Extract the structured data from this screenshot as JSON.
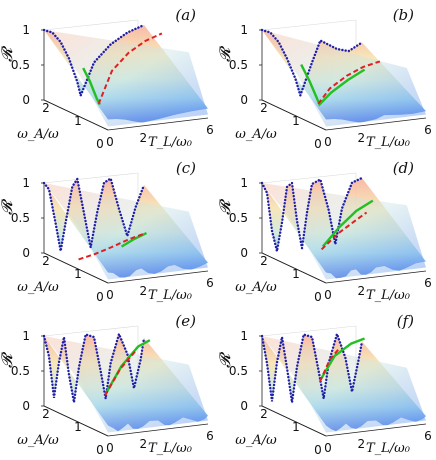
{
  "chart_data": [
    {
      "type": "surface",
      "panel_label": "(a)",
      "zlabel": "𝓡",
      "xlabel": "T_L/ω₀",
      "ylabel": "ω_A/ω",
      "x_ticks": [
        "0",
        "2",
        "6"
      ],
      "y_ticks": [
        "0",
        "1",
        "2"
      ],
      "z_ticks": [
        "0",
        "0.5",
        "1"
      ],
      "zlim": [
        0,
        1
      ],
      "blue_dotted_points": [
        [
          0,
          1.0
        ],
        [
          0.5,
          0.95
        ],
        [
          1.0,
          0.8
        ],
        [
          1.5,
          0.55
        ],
        [
          2.0,
          0.2
        ],
        [
          2.2,
          0.0
        ],
        [
          3.0,
          0.45
        ],
        [
          4.0,
          0.68
        ],
        [
          5.0,
          0.82
        ],
        [
          6.0,
          0.9
        ]
      ],
      "red_dashed_points": [
        [
          2.2,
          0.0
        ],
        [
          3.0,
          0.45
        ],
        [
          4.0,
          0.68
        ],
        [
          5.0,
          0.82
        ],
        [
          6.0,
          0.9
        ]
      ],
      "green_points": [
        [
          1.2,
          0.55
        ],
        [
          1.6,
          0.35
        ],
        [
          2.0,
          0.1
        ],
        [
          2.2,
          0.0
        ]
      ],
      "colors": {
        "blue": "#1f1fa8",
        "red": "#e02020",
        "green": "#22c022"
      }
    },
    {
      "type": "surface",
      "panel_label": "(b)",
      "zlabel": "𝓡",
      "xlabel": "T_L/ω₀",
      "ylabel": "ω_A/ω",
      "x_ticks": [
        "0",
        "2",
        "6"
      ],
      "y_ticks": [
        "0",
        "1",
        "2"
      ],
      "z_ticks": [
        "0",
        "0.5",
        "1"
      ],
      "zlim": [
        0,
        1
      ],
      "blue_dotted_points": [
        [
          0,
          1.0
        ],
        [
          0.5,
          0.95
        ],
        [
          1.0,
          0.8
        ],
        [
          1.5,
          0.55
        ],
        [
          2.0,
          0.25
        ],
        [
          2.3,
          0.0
        ],
        [
          3.0,
          0.45
        ],
        [
          3.5,
          0.75
        ],
        [
          4.5,
          0.6
        ],
        [
          5.2,
          0.55
        ],
        [
          6.0,
          0.65
        ]
      ],
      "red_dashed_points": [
        [
          2.3,
          0.0
        ],
        [
          3.0,
          0.2
        ],
        [
          4.0,
          0.35
        ],
        [
          5.0,
          0.45
        ],
        [
          6.0,
          0.5
        ]
      ],
      "green_points": [
        [
          1.2,
          0.6
        ],
        [
          1.7,
          0.35
        ],
        [
          2.3,
          0.0
        ],
        [
          3.0,
          0.15
        ],
        [
          4.0,
          0.3
        ],
        [
          5.0,
          0.42
        ]
      ],
      "colors": {
        "blue": "#1f1fa8",
        "red": "#e02020",
        "green": "#22c022"
      }
    },
    {
      "type": "surface",
      "panel_label": "(c)",
      "zlabel": "𝓡",
      "xlabel": "T_L/ω₀",
      "ylabel": "ω_A/ω",
      "x_ticks": [
        "0",
        "2",
        "6"
      ],
      "y_ticks": [
        "0",
        "1",
        "2"
      ],
      "z_ticks": [
        "0",
        "0.5",
        "1"
      ],
      "zlim": [
        0,
        1
      ],
      "blue_dotted_points": [
        [
          0,
          1.0
        ],
        [
          0.3,
          0.9
        ],
        [
          0.7,
          0.4
        ],
        [
          1.0,
          0.0
        ],
        [
          1.3,
          0.4
        ],
        [
          1.7,
          0.9
        ],
        [
          2.0,
          1.0
        ],
        [
          2.4,
          0.5
        ],
        [
          2.8,
          0.0
        ],
        [
          3.2,
          0.5
        ],
        [
          3.6,
          0.9
        ],
        [
          4.0,
          0.95
        ],
        [
          4.5,
          0.5
        ],
        [
          5.0,
          0.1
        ],
        [
          5.5,
          0.5
        ],
        [
          6.0,
          0.8
        ]
      ],
      "red_dashed_points": [
        [
          1.0,
          0.0
        ],
        [
          2.0,
          0.05
        ],
        [
          3.0,
          0.12
        ],
        [
          4.0,
          0.2
        ],
        [
          5.0,
          0.26
        ]
      ],
      "green_points": [
        [
          3.5,
          0.12
        ],
        [
          4.2,
          0.2
        ],
        [
          5.0,
          0.27
        ]
      ],
      "colors": {
        "blue": "#1f1fa8",
        "red": "#e02020",
        "green": "#22c022"
      }
    },
    {
      "type": "surface",
      "panel_label": "(d)",
      "zlabel": "𝓡",
      "xlabel": "T_L/ω₀",
      "ylabel": "ω_A/ω",
      "x_ticks": [
        "0",
        "2",
        "6"
      ],
      "y_ticks": [
        "0",
        "1",
        "2"
      ],
      "z_ticks": [
        "0",
        "0.5",
        "1"
      ],
      "zlim": [
        0,
        1
      ],
      "blue_dotted_points": [
        [
          0,
          1.0
        ],
        [
          0.3,
          0.85
        ],
        [
          0.6,
          0.3
        ],
        [
          0.9,
          0.0
        ],
        [
          1.2,
          0.4
        ],
        [
          1.5,
          0.9
        ],
        [
          1.8,
          0.95
        ],
        [
          2.1,
          0.4
        ],
        [
          2.4,
          0.0
        ],
        [
          2.7,
          0.5
        ],
        [
          3.0,
          0.9
        ],
        [
          3.5,
          0.95
        ],
        [
          4.0,
          0.5
        ],
        [
          4.4,
          0.0
        ],
        [
          4.8,
          0.5
        ],
        [
          5.4,
          0.85
        ],
        [
          6.0,
          0.9
        ]
      ],
      "red_dashed_points": [
        [
          2.5,
          0.1
        ],
        [
          3.5,
          0.3
        ],
        [
          4.5,
          0.45
        ],
        [
          5.2,
          0.55
        ]
      ],
      "green_points": [
        [
          2.5,
          0.15
        ],
        [
          3.5,
          0.4
        ],
        [
          4.5,
          0.6
        ],
        [
          5.5,
          0.72
        ]
      ],
      "colors": {
        "blue": "#1f1fa8",
        "red": "#e02020",
        "green": "#22c022"
      }
    },
    {
      "type": "surface",
      "panel_label": "(e)",
      "zlabel": "𝓡",
      "xlabel": "T_L/ω₀",
      "ylabel": "ω_A/ω",
      "x_ticks": [
        "0",
        "2",
        "6"
      ],
      "y_ticks": [
        "0",
        "1",
        "2"
      ],
      "z_ticks": [
        "0",
        "0.5",
        "1"
      ],
      "zlim": [
        0,
        1
      ],
      "blue_dotted_points": [
        [
          0,
          1.0
        ],
        [
          0.3,
          0.7
        ],
        [
          0.6,
          0.1
        ],
        [
          0.9,
          0.6
        ],
        [
          1.2,
          0.95
        ],
        [
          1.5,
          0.4
        ],
        [
          1.8,
          0.0
        ],
        [
          2.1,
          0.5
        ],
        [
          2.5,
          0.95
        ],
        [
          3.0,
          0.9
        ],
        [
          3.4,
          0.4
        ],
        [
          3.7,
          0.0
        ],
        [
          4.0,
          0.5
        ],
        [
          4.5,
          0.9
        ],
        [
          5.0,
          0.6
        ],
        [
          5.4,
          0.1
        ],
        [
          5.8,
          0.5
        ],
        [
          6.0,
          0.8
        ]
      ],
      "red_dashed_points": [
        [
          2.6,
          0.2
        ],
        [
          3.5,
          0.55
        ],
        [
          4.5,
          0.8
        ]
      ],
      "green_points": [
        [
          2.6,
          0.25
        ],
        [
          3.5,
          0.6
        ],
        [
          4.5,
          0.85
        ],
        [
          5.2,
          0.92
        ]
      ],
      "colors": {
        "blue": "#1f1fa8",
        "red": "#e02020",
        "green": "#22c022"
      }
    },
    {
      "type": "surface",
      "panel_label": "(f)",
      "zlabel": "𝓡",
      "xlabel": "T_L/ω₀",
      "ylabel": "ω_A/ω",
      "x_ticks": [
        "0",
        "2",
        "6"
      ],
      "y_ticks": [
        "0",
        "1",
        "2"
      ],
      "z_ticks": [
        "0",
        "0.5",
        "1"
      ],
      "zlim": [
        0,
        1
      ],
      "blue_dotted_points": [
        [
          0,
          1.0
        ],
        [
          0.3,
          0.6
        ],
        [
          0.6,
          0.05
        ],
        [
          0.9,
          0.6
        ],
        [
          1.2,
          0.95
        ],
        [
          1.5,
          0.5
        ],
        [
          1.8,
          0.0
        ],
        [
          2.1,
          0.5
        ],
        [
          2.5,
          0.95
        ],
        [
          3.0,
          0.9
        ],
        [
          3.4,
          0.4
        ],
        [
          3.7,
          0.0
        ],
        [
          4.0,
          0.5
        ],
        [
          4.5,
          0.9
        ],
        [
          5.0,
          0.55
        ],
        [
          5.4,
          0.05
        ],
        [
          5.8,
          0.5
        ],
        [
          6.0,
          0.75
        ]
      ],
      "red_dashed_points": [
        [
          2.4,
          0.4
        ],
        [
          3.0,
          0.7
        ],
        [
          3.6,
          0.85
        ]
      ],
      "green_points": [
        [
          2.4,
          0.45
        ],
        [
          3.2,
          0.75
        ],
        [
          4.2,
          0.9
        ],
        [
          5.0,
          0.95
        ]
      ],
      "colors": {
        "blue": "#1f1fa8",
        "red": "#e02020",
        "green": "#22c022"
      }
    }
  ]
}
